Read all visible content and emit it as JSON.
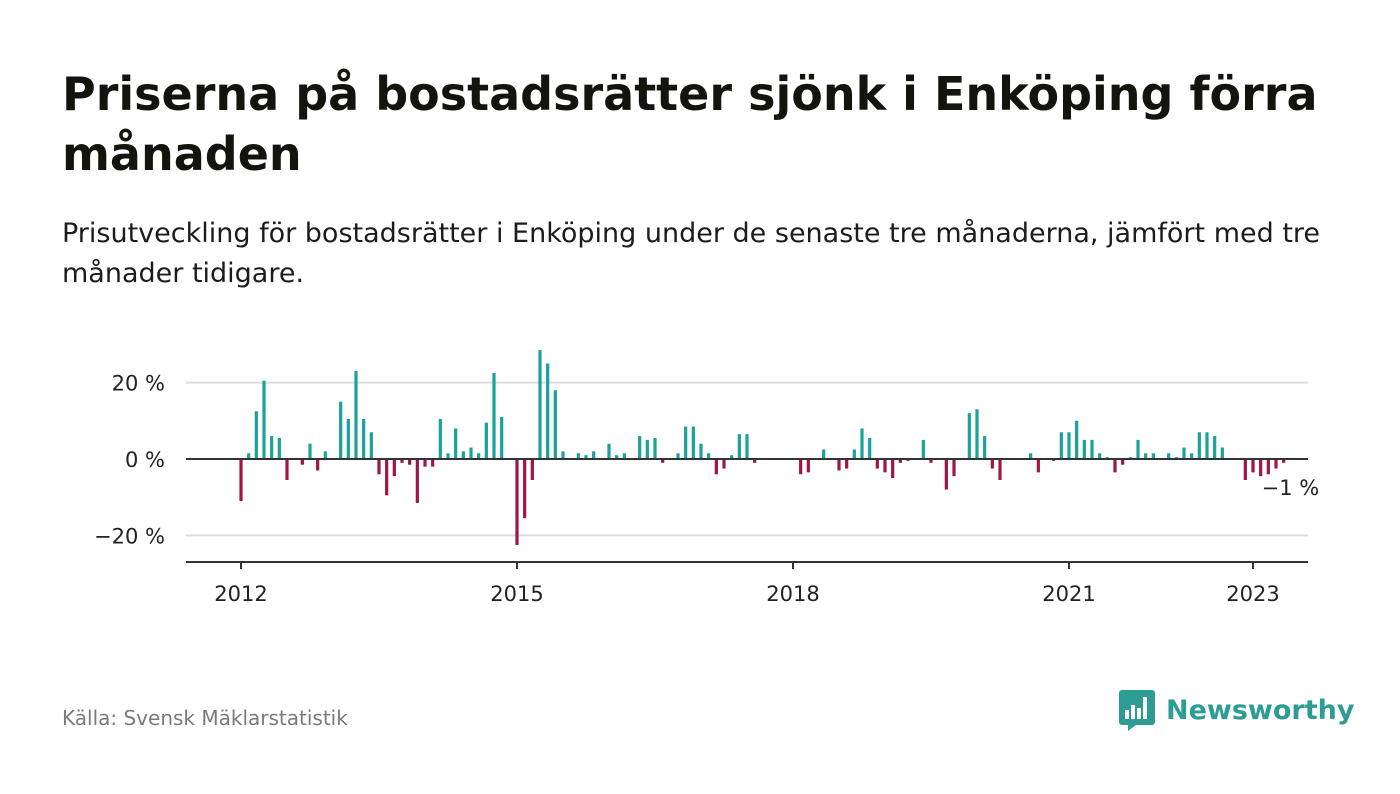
{
  "title": "Priserna på bostadsrätter sjönk i Enköping förra månaden",
  "subtitle": "Prisutveckling för bostadsrätter i Enköping under de senaste tre månaderna, jämfört med tre månader tidigare.",
  "source": "Källa: Svensk Mäklarstatistik",
  "brand": {
    "name": "Newsworthy",
    "icon": "newsworthy-logo-icon"
  },
  "colors": {
    "positive": "#1aa39a",
    "negative": "#a01548",
    "grid": "#dddddd",
    "axis": "#333333"
  },
  "chart_data": {
    "type": "bar",
    "title": "",
    "xlabel": "",
    "ylabel": "",
    "ylim": [
      -27,
      28
    ],
    "y_ticks": [
      {
        "value": 20,
        "label": "20 %"
      },
      {
        "value": 0,
        "label": "0 %"
      },
      {
        "value": -20,
        "label": "−20 %"
      }
    ],
    "x_ticks": [
      {
        "value": "2012-01",
        "label": "2012"
      },
      {
        "value": "2015-01",
        "label": "2015"
      },
      {
        "value": "2018-01",
        "label": "2018"
      },
      {
        "value": "2021-01",
        "label": "2021"
      },
      {
        "value": "2023-01",
        "label": "2023"
      }
    ],
    "grid": true,
    "x_start": "2012-01",
    "last_value_label": "−1 %",
    "series": [
      {
        "values": [
          -11,
          1.5,
          12.5,
          20.5,
          6,
          5.5,
          -5.5,
          0,
          -1.5,
          4,
          -3,
          2,
          0,
          15,
          10.5,
          23,
          10.5,
          7,
          -4,
          -9.5,
          -4.5,
          -1,
          -1.5,
          -11.5,
          -2,
          -2,
          10.5,
          1.5,
          8,
          2,
          3,
          1.5,
          9.5,
          22.5,
          11,
          0,
          -22.5,
          -15.5,
          -5.5,
          28.5,
          25,
          18,
          2,
          0,
          1.5,
          1,
          2,
          0,
          4,
          1,
          1.5,
          0,
          6,
          5,
          5.5,
          -1,
          0,
          1.5,
          8.5,
          8.5,
          4,
          1.5,
          -4,
          -2.5,
          1,
          6.5,
          6.5,
          -1,
          0,
          0,
          0,
          0,
          0,
          -4,
          -3.5,
          0,
          2.5,
          0,
          -3,
          -2.5,
          2.5,
          8,
          5.5,
          -2.5,
          -3.5,
          -5,
          -1,
          -0.5,
          0,
          5,
          -1,
          0,
          -8,
          -4.5,
          0,
          12,
          13,
          6,
          -2.5,
          -5.5,
          0,
          0,
          0,
          1.5,
          -3.5,
          0,
          -0.5,
          7,
          7,
          10,
          5,
          5,
          1.5,
          0.5,
          -3.5,
          -1.5,
          0.5,
          5,
          1.5,
          1.5,
          0,
          1.5,
          0.5,
          3,
          1.5,
          7,
          7,
          6,
          3,
          0,
          0,
          -5.5,
          -3.5,
          -4.5,
          -4,
          -2.5,
          -1
        ]
      }
    ]
  }
}
